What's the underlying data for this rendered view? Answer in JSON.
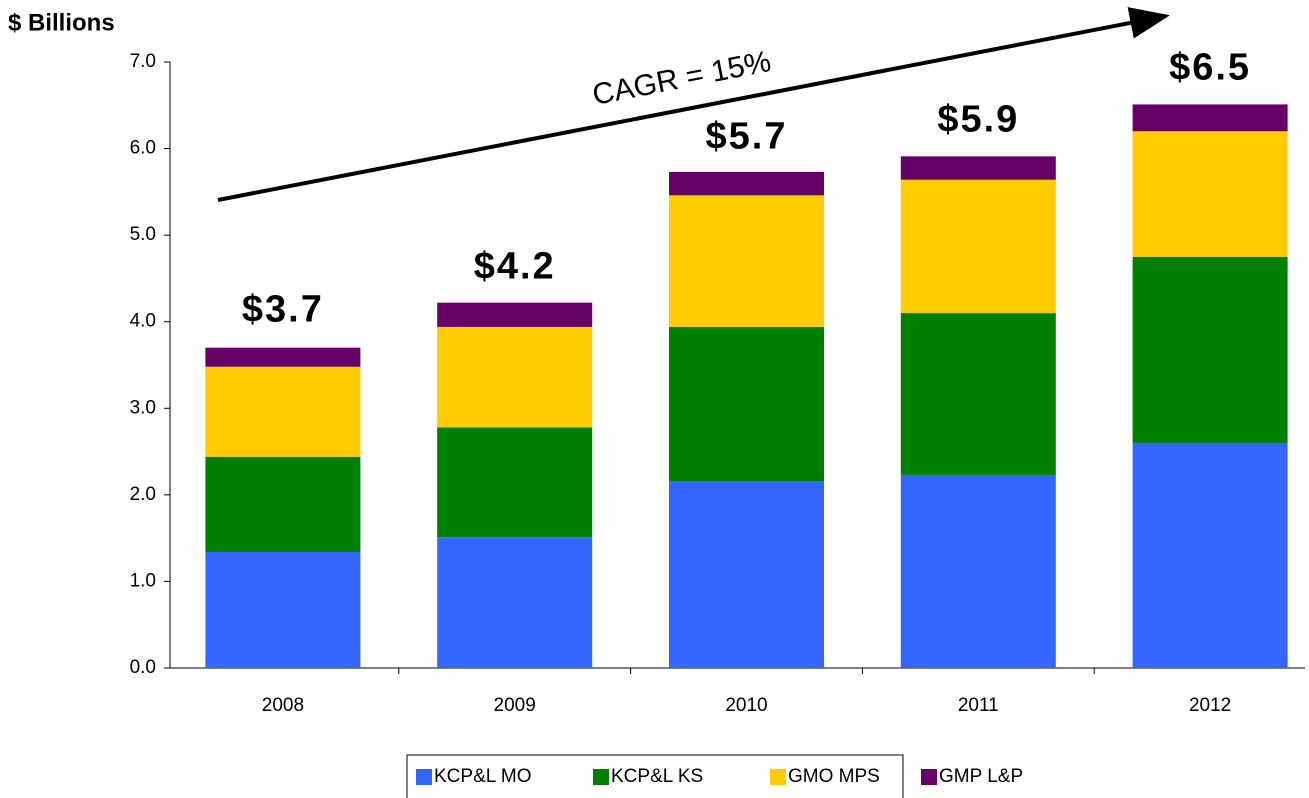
{
  "chart_data": {
    "type": "stacked-bar",
    "y_label": "$ Billions",
    "annotation": "CAGR = 15%",
    "categories": [
      "2008",
      "2009",
      "2010",
      "2011",
      "2012"
    ],
    "series": [
      {
        "name": "KCP&L MO",
        "color": "#3366ff",
        "values": [
          1.34,
          1.51,
          2.16,
          2.23,
          2.6
        ]
      },
      {
        "name": "KCP&L KS",
        "color": "#008000",
        "values": [
          1.1,
          1.27,
          1.78,
          1.87,
          2.15
        ]
      },
      {
        "name": "GMO MPS",
        "color": "#ffcc00",
        "values": [
          1.04,
          1.16,
          1.52,
          1.54,
          1.45
        ]
      },
      {
        "name": "GMP L&P",
        "color": "#660066",
        "values": [
          0.22,
          0.28,
          0.27,
          0.27,
          0.31
        ]
      }
    ],
    "totals": {
      "values": [
        3.7,
        4.2,
        5.7,
        5.9,
        6.5
      ],
      "value_labels": [
        "$3.7",
        "$4.2",
        "$5.7",
        "$5.9",
        "$6.5"
      ]
    },
    "ylim": [
      0,
      7
    ],
    "yticks": [
      {
        "value": 0,
        "label": "0.0"
      },
      {
        "value": 1,
        "label": "1.0"
      },
      {
        "value": 2,
        "label": "2.0"
      },
      {
        "value": 3,
        "label": "3.0"
      },
      {
        "value": 4,
        "label": "4.0"
      },
      {
        "value": 5,
        "label": "5.0"
      },
      {
        "value": 6,
        "label": "6.0"
      },
      {
        "value": 7,
        "label": "7.0"
      }
    ],
    "legend": "bottom"
  }
}
